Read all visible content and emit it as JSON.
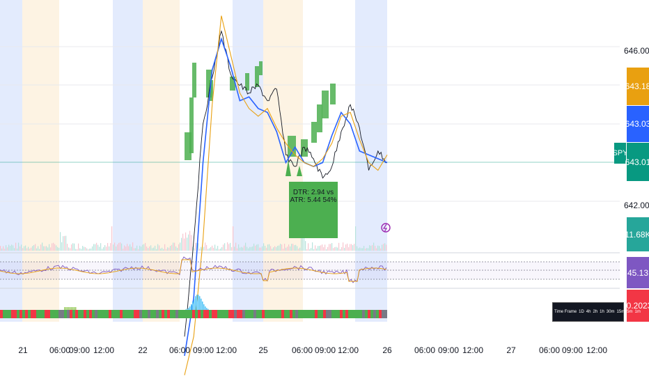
{
  "chart_data": {
    "type": "line",
    "symbol": "SPY",
    "price_scale_labels": [
      "646.00",
      "642.00"
    ],
    "price_tags": [
      {
        "value": "643.18",
        "color": "#e9a010"
      },
      {
        "value": "643.03",
        "color": "#2962ff"
      },
      {
        "value": "643.01",
        "color": "#089981"
      },
      {
        "value": "11.68K",
        "color": "#26a69a"
      },
      {
        "value": "45.13",
        "color": "#7e57c2"
      },
      {
        "value": "-0.2023",
        "color": "#f23645"
      }
    ],
    "x_ticks": [
      "21",
      "06:00",
      "09:00",
      "12:00",
      "22",
      "06:00",
      "09:00",
      "12:00",
      "25",
      "06:00",
      "09:00",
      "12:00",
      "26",
      "06:00",
      "09:00",
      "12:00",
      "27",
      "06:00",
      "09:00",
      "12:00"
    ],
    "annotation": "DTR: 2.94 vs ATR: 5.44 54%",
    "timeframe_panel": [
      "Time Frame",
      "1D",
      "4h",
      "2h",
      "1h",
      "30m",
      "15m",
      "5m",
      "1m"
    ],
    "series": [
      {
        "values": [
          638.5,
          641.0,
          644.0,
          645.2,
          646.4,
          645.3,
          645.0,
          644.8,
          645.0,
          644.6,
          644.9,
          643.2,
          642.9,
          643.4,
          643.1,
          642.6,
          642.9,
          643.8,
          644.5,
          643.9,
          642.8,
          643.3,
          643.0
        ]
      },
      {
        "values": [
          638.0,
          639.5,
          643.0,
          645.4,
          646.2,
          645.5,
          644.6,
          644.7,
          644.4,
          644.3,
          643.8,
          643.0,
          643.4,
          643.0,
          642.9,
          643.0,
          643.7,
          644.3,
          644.0,
          643.3,
          643.2,
          643.1,
          643.0
        ]
      },
      {
        "values": [
          637.5,
          638.5,
          641.0,
          644.5,
          646.8,
          645.8,
          644.8,
          644.4,
          644.2,
          644.4,
          643.9,
          643.5,
          643.2,
          643.0,
          642.9,
          643.1,
          643.5,
          644.2,
          644.3,
          643.6,
          643.0,
          642.8,
          643.2
        ]
      }
    ],
    "colors": {
      "price": "#131722",
      "ema": "#2962ff",
      "sma": "#e9a010",
      "rsi": "#7e57c2",
      "rsi_ma": "#e9a010",
      "highlight_green": "#4caf50",
      "session_blue": "#e3ebfd",
      "session_orange": "#fdf3e3"
    }
  }
}
